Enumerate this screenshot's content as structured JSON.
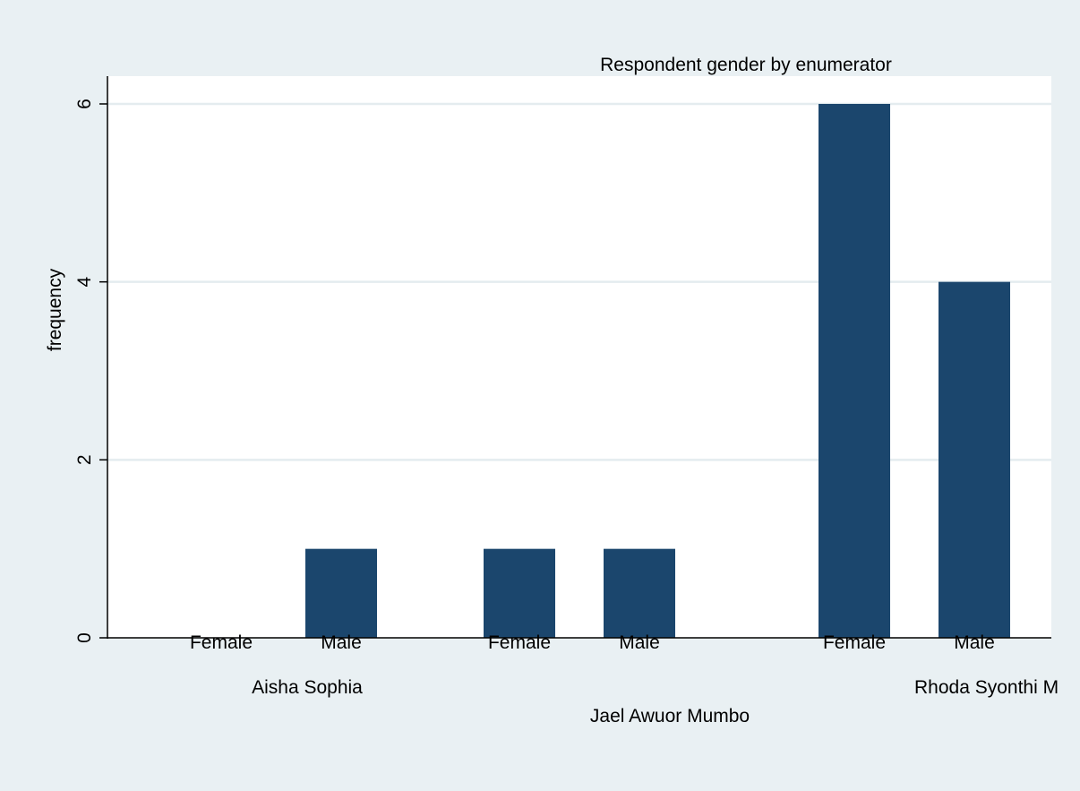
{
  "chart_data": {
    "type": "bar",
    "title": "Respondent gender by enumerator",
    "ylabel": "frequency",
    "xlabel": "",
    "ylim": [
      0,
      6
    ],
    "yticks": [
      0,
      2,
      4,
      6
    ],
    "grid": true,
    "groups": [
      {
        "name": "Aisha Sophia",
        "bars": [
          {
            "label": "Female",
            "value": 0
          },
          {
            "label": "Male",
            "value": 1
          }
        ]
      },
      {
        "name": "Jael Awuor Mumbo",
        "bars": [
          {
            "label": "Female",
            "value": 1
          },
          {
            "label": "Male",
            "value": 1
          }
        ]
      },
      {
        "name": "Rhoda Syonthi M",
        "bars": [
          {
            "label": "Female",
            "value": 6
          },
          {
            "label": "Male",
            "value": 4
          }
        ]
      }
    ],
    "colors": {
      "background": "#e9f0f3",
      "plot_background": "#ffffff",
      "bar": "#1b466d",
      "grid": "#e4ecef",
      "axis": "#000000"
    }
  }
}
